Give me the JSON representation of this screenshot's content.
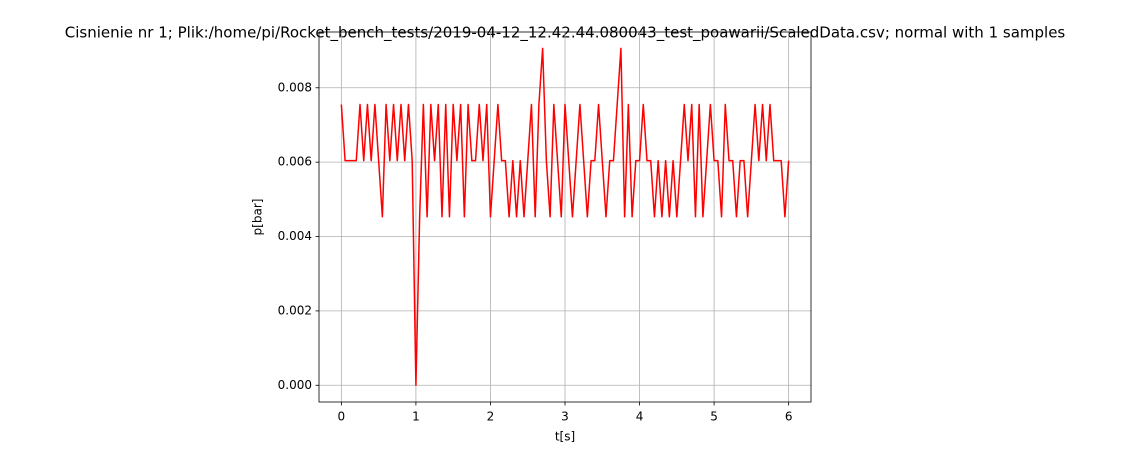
{
  "chart_data": {
    "type": "line",
    "title": "Cisnienie nr 1; Plik:/home/pi/Rocket_bench_tests/2019-04-12_12.42.44.080043_test_poawarii/ScaledData.csv; normal with 1 samples",
    "xlabel": "t[s]",
    "ylabel": "p[bar]",
    "color": "#ff0000",
    "grid": true,
    "x": [
      0,
      0.05,
      0.1,
      0.15,
      0.2,
      0.25,
      0.3,
      0.35,
      0.4,
      0.45,
      0.5,
      0.55,
      0.6,
      0.65,
      0.7,
      0.75,
      0.8,
      0.85,
      0.9,
      0.95,
      1,
      1.05,
      1.1,
      1.15,
      1.2,
      1.25,
      1.3,
      1.35,
      1.4,
      1.45,
      1.5,
      1.55,
      1.6,
      1.65,
      1.7,
      1.75,
      1.8,
      1.85,
      1.9,
      1.95,
      2,
      2.05,
      2.1,
      2.15,
      2.2,
      2.25,
      2.3,
      2.35,
      2.4,
      2.45,
      2.5,
      2.55,
      2.6,
      2.65,
      2.7,
      2.75,
      2.8,
      2.85,
      2.9,
      2.95,
      3,
      3.05,
      3.1,
      3.15,
      3.2,
      3.25,
      3.3,
      3.35,
      3.4,
      3.45,
      3.5,
      3.55,
      3.6,
      3.65,
      3.7,
      3.75,
      3.8,
      3.85,
      3.9,
      3.95,
      4,
      4.05,
      4.1,
      4.15,
      4.2,
      4.25,
      4.3,
      4.35,
      4.4,
      4.45,
      4.5,
      4.55,
      4.6,
      4.65,
      4.7,
      4.75,
      4.8,
      4.85,
      4.9,
      4.95,
      5,
      5.05,
      5.1,
      5.15,
      5.2,
      5.25,
      5.3,
      5.35,
      5.4,
      5.45,
      5.5,
      5.55,
      5.6,
      5.65,
      5.7,
      5.75,
      5.8,
      5.85,
      5.9,
      5.95,
      6
    ],
    "values": [
      0.00755,
      0.00604,
      0.00604,
      0.00604,
      0.00604,
      0.00755,
      0.00604,
      0.00755,
      0.00604,
      0.00755,
      0.00604,
      0.00453,
      0.00755,
      0.00604,
      0.00755,
      0.00604,
      0.00755,
      0.00604,
      0.00755,
      0.00604,
      0,
      0.00453,
      0.00755,
      0.00453,
      0.00755,
      0.00604,
      0.00755,
      0.00453,
      0.00755,
      0.00453,
      0.00755,
      0.00604,
      0.00755,
      0.00453,
      0.00755,
      0.00604,
      0.00604,
      0.00755,
      0.00604,
      0.00755,
      0.00453,
      0.00604,
      0.00755,
      0.00604,
      0.00604,
      0.00453,
      0.00604,
      0.00453,
      0.00604,
      0.00453,
      0.00604,
      0.00755,
      0.00453,
      0.00755,
      0.00906,
      0.00604,
      0.00453,
      0.00755,
      0.00604,
      0.00453,
      0.00755,
      0.00604,
      0.00453,
      0.00604,
      0.00755,
      0.00604,
      0.00453,
      0.00604,
      0.00604,
      0.00755,
      0.00604,
      0.00453,
      0.00604,
      0.00604,
      0.00755,
      0.00906,
      0.00453,
      0.00755,
      0.00453,
      0.00604,
      0.00604,
      0.00755,
      0.00604,
      0.00604,
      0.00453,
      0.00604,
      0.00453,
      0.00604,
      0.00453,
      0.00604,
      0.00453,
      0.00604,
      0.00755,
      0.00604,
      0.00755,
      0.00453,
      0.00755,
      0.00453,
      0.00604,
      0.00755,
      0.00604,
      0.00604,
      0.00453,
      0.00755,
      0.00604,
      0.00604,
      0.00453,
      0.00604,
      0.00604,
      0.00453,
      0.00604,
      0.00755,
      0.00604,
      0.00755,
      0.00604,
      0.00755,
      0.00604,
      0.00604,
      0.00604,
      0.00453,
      0.00604
    ],
    "xlim": [
      -0.3,
      6.3
    ],
    "xticks": [
      0,
      1,
      2,
      3,
      4,
      5,
      6
    ],
    "ylim": [
      -0.00045,
      0.0095
    ],
    "yticks": [
      {
        "value": 0,
        "label": "0.000"
      },
      0.002,
      0.004,
      0.006,
      0.008
    ]
  }
}
